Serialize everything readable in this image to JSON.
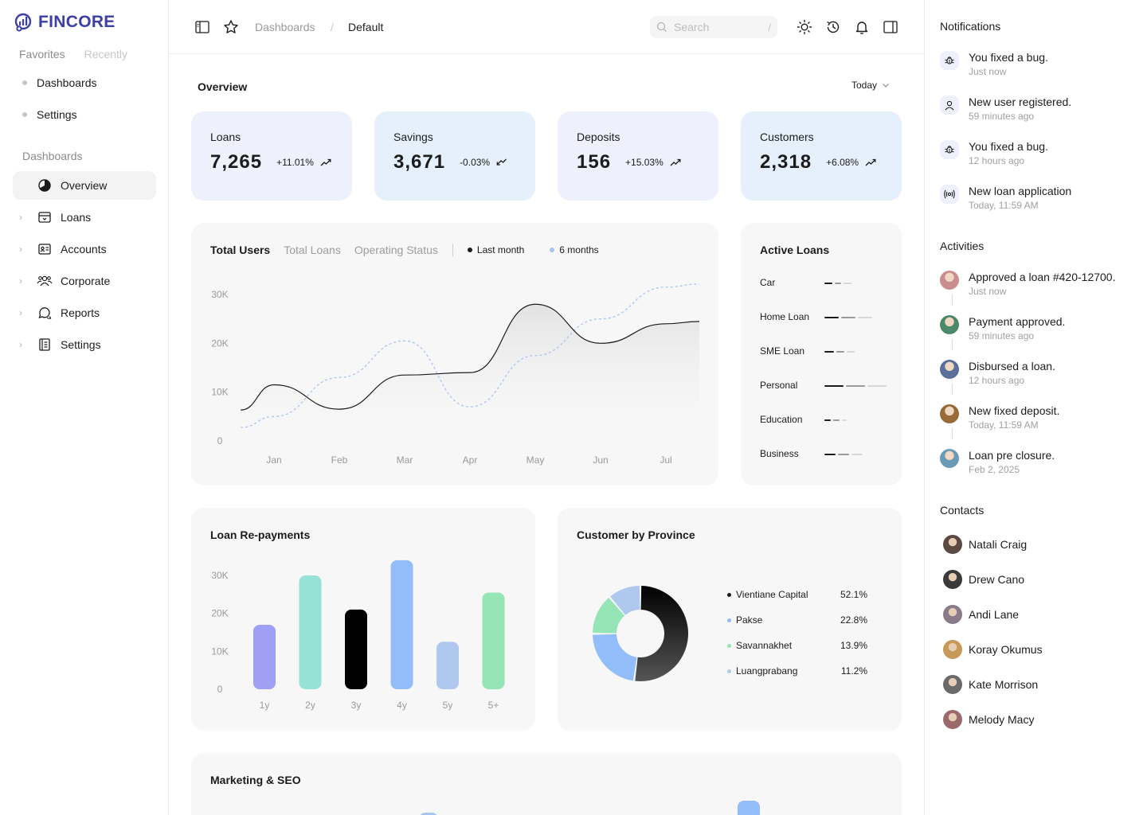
{
  "brand": {
    "name": "FINCORE",
    "color": "#3b3fa6"
  },
  "sidebar": {
    "tabs": [
      "Favorites",
      "Recently"
    ],
    "favorites": [
      "Dashboards",
      "Settings"
    ],
    "section": "Dashboards",
    "nav": [
      {
        "label": "Overview",
        "icon": "pie-chart-icon",
        "active": true
      },
      {
        "label": "Loans",
        "icon": "archive-box-icon"
      },
      {
        "label": "Accounts",
        "icon": "id-card-icon"
      },
      {
        "label": "Corporate",
        "icon": "users-group-icon"
      },
      {
        "label": "Reports",
        "icon": "chat-bubbles-icon"
      },
      {
        "label": "Settings",
        "icon": "document-list-icon"
      }
    ]
  },
  "topbar": {
    "breadcrumb": [
      "Dashboards",
      "Default"
    ],
    "separator": "/",
    "search": {
      "placeholder": "Search",
      "shortcut": "/"
    },
    "icons": [
      "sidebar-toggle-icon",
      "star-icon",
      "sun-icon",
      "history-icon",
      "bell-icon",
      "panel-right-icon"
    ]
  },
  "overview": {
    "title": "Overview",
    "range": "Today",
    "kpis": [
      {
        "label": "Loans",
        "value": "7,265",
        "change": "+11.01%",
        "trend": "up",
        "bg": "#eef0fc"
      },
      {
        "label": "Savings",
        "value": "3,671",
        "change": "-0.03%",
        "trend": "down",
        "bg": "#e6f0fd"
      },
      {
        "label": "Deposits",
        "value": "156",
        "change": "+15.03%",
        "trend": "up",
        "bg": "#eef0fc"
      },
      {
        "label": "Customers",
        "value": "2,318",
        "change": "+6.08%",
        "trend": "up",
        "bg": "#e6f0fd"
      }
    ]
  },
  "users_chart": {
    "tabs": [
      "Total Users",
      "Total Loans",
      "Operating Status"
    ],
    "legend": [
      {
        "label": "Last month",
        "color": "#1c1c1c"
      },
      {
        "label": "6 months",
        "color": "#a8c5f0"
      }
    ]
  },
  "active_loans": {
    "title": "Active Loans",
    "items": [
      {
        "label": "Car",
        "bars": [
          10,
          8,
          10
        ]
      },
      {
        "label": "Home Loan",
        "bars": [
          18,
          18,
          18
        ]
      },
      {
        "label": "SME Loan",
        "bars": [
          12,
          10,
          10
        ]
      },
      {
        "label": "Personal",
        "bars": [
          24,
          24,
          24
        ]
      },
      {
        "label": "Education",
        "bars": [
          8,
          8,
          6
        ]
      },
      {
        "label": "Business",
        "bars": [
          14,
          14,
          14
        ]
      }
    ]
  },
  "repayments": {
    "title": "Loan Re-payments"
  },
  "province": {
    "title": "Customer by Province",
    "rows": [
      {
        "name": "Vientiane Capital",
        "value": "52.1%",
        "color": "#1c1c1c"
      },
      {
        "name": "Pakse",
        "value": "22.8%",
        "color": "#92bdfa"
      },
      {
        "name": "Savannakhet",
        "value": "13.9%",
        "color": "#95e5b6"
      },
      {
        "name": "Luangprabang",
        "value": "11.2%",
        "color": "#aec8ee"
      }
    ]
  },
  "marketing": {
    "title": "Marketing & SEO"
  },
  "notifications": {
    "title": "Notifications",
    "items": [
      {
        "text": "You fixed a bug.",
        "time": "Just now",
        "icon": "bug-icon"
      },
      {
        "text": "New user registered.",
        "time": "59 minutes ago",
        "icon": "user-icon"
      },
      {
        "text": "You fixed a bug.",
        "time": "12 hours ago",
        "icon": "bug-icon"
      },
      {
        "text": "New loan application",
        "time": "Today, 11:59 AM",
        "icon": "broadcast-icon"
      }
    ]
  },
  "activities": {
    "title": "Activities",
    "items": [
      {
        "text": "Approved a loan #420-12700.",
        "time": "Just now",
        "color": "#c98d8d"
      },
      {
        "text": "Payment approved.",
        "time": "59 minutes ago",
        "color": "#4a8a6a"
      },
      {
        "text": "Disbursed a loan.",
        "time": "12 hours ago",
        "color": "#5a6f9a"
      },
      {
        "text": "New fixed deposit.",
        "time": "Today, 11:59 AM",
        "color": "#9a6b3a"
      },
      {
        "text": "Loan pre closure.",
        "time": "Feb 2, 2025",
        "color": "#6a9ab5"
      }
    ]
  },
  "contacts": {
    "title": "Contacts",
    "items": [
      {
        "name": "Natali Craig",
        "color": "#5a4a42"
      },
      {
        "name": "Drew Cano",
        "color": "#3a3a3a"
      },
      {
        "name": "Andi Lane",
        "color": "#8a7a8a"
      },
      {
        "name": "Koray Okumus",
        "color": "#c79a5a"
      },
      {
        "name": "Kate Morrison",
        "color": "#6a6a6a"
      },
      {
        "name": "Melody Macy",
        "color": "#9a6a6a"
      }
    ]
  },
  "chart_data": [
    {
      "type": "line",
      "title": "Total Users",
      "categories": [
        "Jan",
        "Feb",
        "Mar",
        "Apr",
        "May",
        "Jun",
        "Jul"
      ],
      "y_ticks": [
        "0",
        "10K",
        "20K",
        "30K"
      ],
      "ylim": [
        0,
        30000
      ],
      "series": [
        {
          "name": "Last month",
          "color": "#1c1c1c",
          "values": [
            11500,
            6500,
            13500,
            14000,
            28000,
            20000,
            24000
          ]
        },
        {
          "name": "6 months",
          "color": "#a8c5f0",
          "values": [
            5000,
            13000,
            20500,
            7000,
            17500,
            25000,
            31500
          ]
        }
      ]
    },
    {
      "type": "bar",
      "title": "Loan Re-payments",
      "categories": [
        "1y",
        "2y",
        "3y",
        "4y",
        "5y",
        "5+"
      ],
      "y_ticks": [
        "0",
        "10K",
        "20K",
        "30K"
      ],
      "ylim": [
        0,
        30000
      ],
      "values": [
        17000,
        30000,
        21000,
        34000,
        12500,
        25500
      ],
      "colors": [
        "#9f9ff5",
        "#96e2d6",
        "#000000",
        "#92bdfa",
        "#aec8ee",
        "#95e5b6"
      ]
    },
    {
      "type": "pie",
      "title": "Customer by Province",
      "labels": [
        "Vientiane Capital",
        "Pakse",
        "Savannakhet",
        "Luangprabang"
      ],
      "values": [
        52.1,
        22.8,
        13.9,
        11.2
      ],
      "colors": [
        "#1c1c1c",
        "#92bdfa",
        "#95e5b6",
        "#aec8ee"
      ]
    }
  ]
}
